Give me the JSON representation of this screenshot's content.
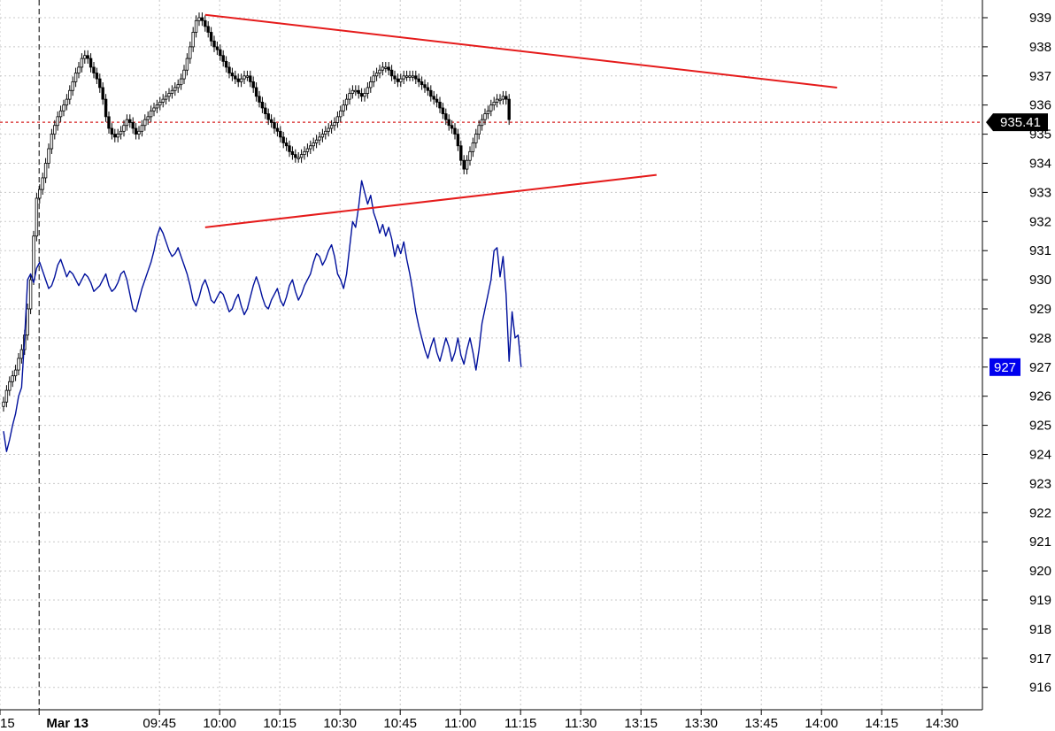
{
  "chart_data": {
    "type": "line",
    "title": "",
    "xlabel": "",
    "ylabel": "",
    "ylim": [
      915.3,
      939.8
    ],
    "y_ticks": [
      939,
      938,
      937,
      936,
      935,
      934,
      933,
      932,
      931,
      930,
      929,
      928,
      927,
      926,
      925,
      924,
      923,
      922,
      921,
      920,
      919,
      918,
      917,
      916
    ],
    "x_tick_labels": [
      "15",
      "Mar 13",
      "09:45",
      "10:00",
      "10:15",
      "10:30",
      "10:45",
      "11:00",
      "11:15",
      "11:30",
      "13:15",
      "13:30",
      "13:45",
      "14:00",
      "14:15",
      "14:30"
    ],
    "x_tick_index": [
      0,
      13,
      53,
      73,
      93,
      113,
      133,
      153,
      173,
      193,
      213,
      233,
      253,
      273,
      293,
      313
    ],
    "session_divider_index": 13,
    "grid": true,
    "legend": "none",
    "reference_line": {
      "value": 935.41,
      "label": "935.41",
      "color": "#d62020"
    },
    "last_value_badges": [
      {
        "series": "primary",
        "label": "935.41",
        "color": "#000000"
      },
      {
        "series": "comparison",
        "label": "927",
        "color": "#0000ee"
      }
    ],
    "series": [
      {
        "key": "primary",
        "style": "candlestick",
        "color": "#000000",
        "values": [
          925.8,
          926.2,
          926.5,
          926.7,
          926.9,
          927.3,
          927.6,
          928.1,
          929.0,
          930.0,
          931.5,
          932.8,
          933.1,
          933.5,
          934.0,
          934.5,
          935.0,
          935.3,
          935.6,
          935.8,
          936.0,
          936.2,
          936.5,
          936.8,
          937.1,
          937.3,
          937.6,
          937.7,
          937.6,
          937.3,
          937.1,
          936.9,
          936.6,
          936.2,
          935.6,
          935.2,
          935.0,
          934.9,
          935.0,
          935.1,
          935.3,
          935.5,
          935.4,
          935.2,
          935.0,
          935.1,
          935.3,
          935.5,
          935.6,
          935.8,
          935.9,
          936.0,
          936.1,
          936.2,
          936.3,
          936.4,
          936.5,
          936.6,
          936.7,
          936.9,
          937.2,
          937.6,
          938.0,
          938.5,
          938.9,
          939.0,
          938.9,
          938.7,
          938.5,
          938.2,
          938.0,
          937.9,
          937.7,
          937.5,
          937.3,
          937.1,
          937.0,
          936.9,
          936.8,
          936.9,
          937.0,
          937.0,
          936.8,
          936.6,
          936.3,
          936.1,
          935.9,
          935.7,
          935.5,
          935.4,
          935.2,
          935.1,
          934.9,
          934.7,
          934.6,
          934.4,
          934.3,
          934.2,
          934.2,
          934.3,
          934.4,
          934.5,
          934.6,
          934.7,
          934.8,
          934.9,
          935.0,
          935.1,
          935.2,
          935.3,
          935.4,
          935.6,
          935.8,
          936.0,
          936.2,
          936.4,
          936.5,
          936.5,
          936.4,
          936.3,
          936.4,
          936.6,
          936.8,
          937.0,
          937.1,
          937.2,
          937.3,
          937.3,
          937.2,
          937.0,
          936.9,
          936.8,
          936.9,
          937.0,
          937.0,
          937.0,
          937.0,
          936.9,
          936.8,
          936.7,
          936.6,
          936.5,
          936.3,
          936.2,
          936.1,
          935.9,
          935.7,
          935.5,
          935.3,
          935.2,
          935.0,
          934.6,
          934.1,
          933.8,
          934.1,
          934.4,
          934.7,
          935.0,
          935.3,
          935.5,
          935.7,
          935.8,
          936.0,
          936.1,
          936.2,
          936.2,
          936.3,
          936.2,
          935.5
        ]
      },
      {
        "key": "comparison",
        "style": "line",
        "color": "#00109c",
        "values": [
          924.8,
          924.1,
          924.5,
          925.0,
          925.4,
          926.0,
          926.3,
          928.0,
          930.0,
          930.2,
          929.9,
          930.4,
          930.6,
          930.3,
          930.0,
          929.7,
          929.8,
          930.1,
          930.5,
          930.7,
          930.4,
          930.1,
          930.3,
          930.2,
          930.0,
          929.8,
          930.0,
          930.2,
          930.1,
          929.9,
          929.6,
          929.7,
          929.8,
          930.0,
          930.2,
          929.8,
          929.6,
          929.7,
          929.9,
          930.2,
          930.3,
          930.0,
          929.5,
          929.0,
          928.9,
          929.3,
          929.7,
          930.0,
          930.3,
          930.6,
          931.0,
          931.5,
          931.8,
          931.6,
          931.3,
          931.0,
          930.8,
          930.9,
          931.1,
          930.8,
          930.5,
          930.2,
          929.8,
          929.3,
          929.1,
          929.4,
          929.8,
          930.0,
          929.7,
          929.3,
          929.2,
          929.4,
          929.6,
          929.5,
          929.2,
          928.9,
          929.0,
          929.3,
          929.5,
          929.1,
          928.8,
          929.0,
          929.4,
          929.8,
          930.1,
          929.8,
          929.4,
          929.1,
          929.0,
          929.3,
          929.5,
          929.7,
          929.3,
          929.1,
          929.4,
          929.8,
          930.0,
          929.6,
          929.3,
          929.5,
          929.8,
          930.0,
          930.2,
          930.6,
          930.9,
          930.8,
          930.5,
          930.7,
          931.0,
          931.2,
          930.8,
          930.2,
          930.0,
          929.7,
          930.2,
          931.1,
          932.0,
          931.8,
          932.5,
          933.4,
          933.0,
          932.6,
          932.9,
          932.3,
          932.0,
          931.6,
          931.9,
          931.5,
          931.8,
          931.4,
          930.8,
          931.2,
          930.9,
          931.3,
          930.7,
          930.2,
          929.6,
          928.9,
          928.4,
          928.0,
          927.6,
          927.3,
          927.7,
          928.0,
          927.5,
          927.2,
          927.6,
          928.0,
          927.7,
          927.2,
          927.5,
          928.0,
          927.4,
          927.1,
          927.6,
          928.0,
          927.5,
          926.9,
          927.6,
          928.5,
          929.0,
          929.5,
          930.0,
          931.0,
          931.1,
          930.1,
          930.8,
          929.5,
          927.2,
          928.9,
          928.0,
          928.1,
          927.0
        ]
      }
    ],
    "trendlines": [
      {
        "series": "primary",
        "from": {
          "index": 67,
          "value": 939.1
        },
        "to": {
          "index": 277,
          "value": 936.6
        },
        "color": "#e51b1b"
      },
      {
        "series": "comparison",
        "from": {
          "index": 67,
          "value": 931.8
        },
        "to": {
          "index": 217,
          "value": 933.6
        },
        "color": "#e51b1b"
      }
    ]
  }
}
